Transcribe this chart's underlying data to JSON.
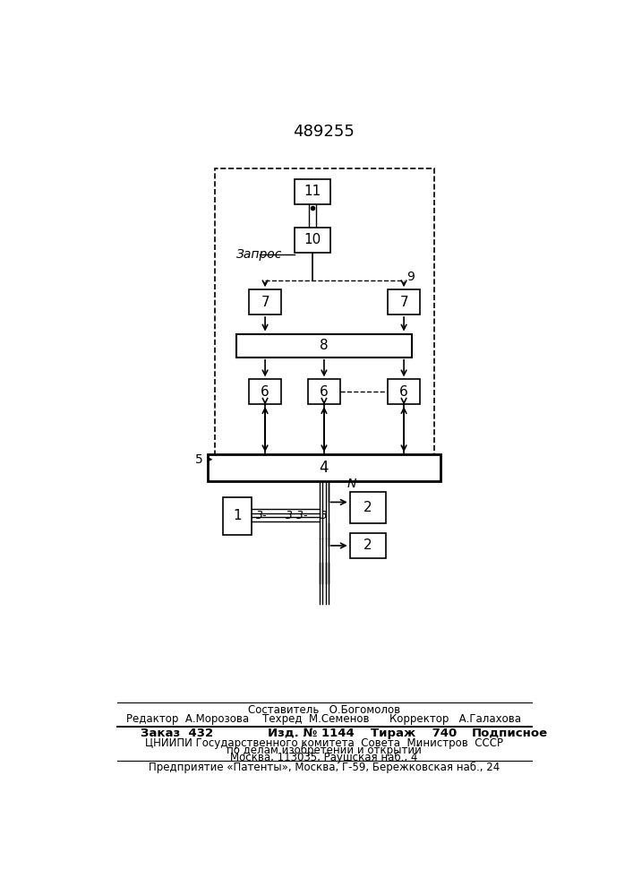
{
  "title": "489255",
  "title_fontsize": 13,
  "bg_color": "#ffffff",
  "line_color": "#000000",
  "text_color": "#000000",
  "footer": {
    "line1": "Составитель   О.Богомолов",
    "line2": "Редактор  А.Морозова    Техред  М.Семенов      Корректор   А.Галахова",
    "zakaz": "Заказ  432",
    "izd": "Изд. № 1144",
    "tirazh": "Тираж    740",
    "podp": "Подписное",
    "org1": "ЦНИИПИ Государственного комитета  Совета  Министров  СССР",
    "org2": "по делам изобретений и открытий",
    "org3": "Москва, 113035, Раушская наб., 4",
    "patent": "Предприятие «Патенты», Москва, Г-59, Бережковская наб., 24"
  }
}
